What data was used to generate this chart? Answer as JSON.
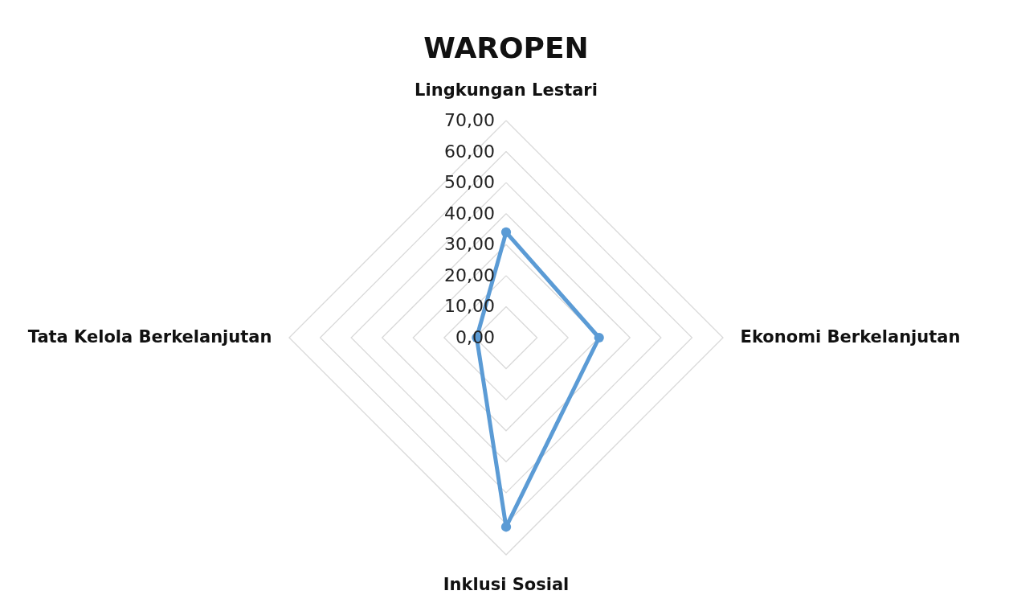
{
  "chart_data": {
    "type": "radar",
    "title": "WAROPEN",
    "categories": [
      "Lingkungan Lestari",
      "Ekonomi Berkelanjutan",
      "Inklusi Sosial",
      "Tata Kelola Berkelanjutan"
    ],
    "series": [
      {
        "color": "#5b9bd5",
        "values": [
          34.0,
          30.0,
          61.0,
          9.5
        ]
      }
    ],
    "ylim": [
      0,
      70
    ],
    "yticks": [
      {
        "value": 0,
        "label": "0,00"
      },
      {
        "value": 10,
        "label": "10,00"
      },
      {
        "value": 20,
        "label": "20,00"
      },
      {
        "value": 30,
        "label": "30,00"
      },
      {
        "value": 40,
        "label": "40,00"
      },
      {
        "value": 50,
        "label": "50,00"
      },
      {
        "value": 60,
        "label": "60,00"
      },
      {
        "value": 70,
        "label": "70,00"
      }
    ],
    "grid": true,
    "marker": "circle",
    "line_style": "solid"
  }
}
